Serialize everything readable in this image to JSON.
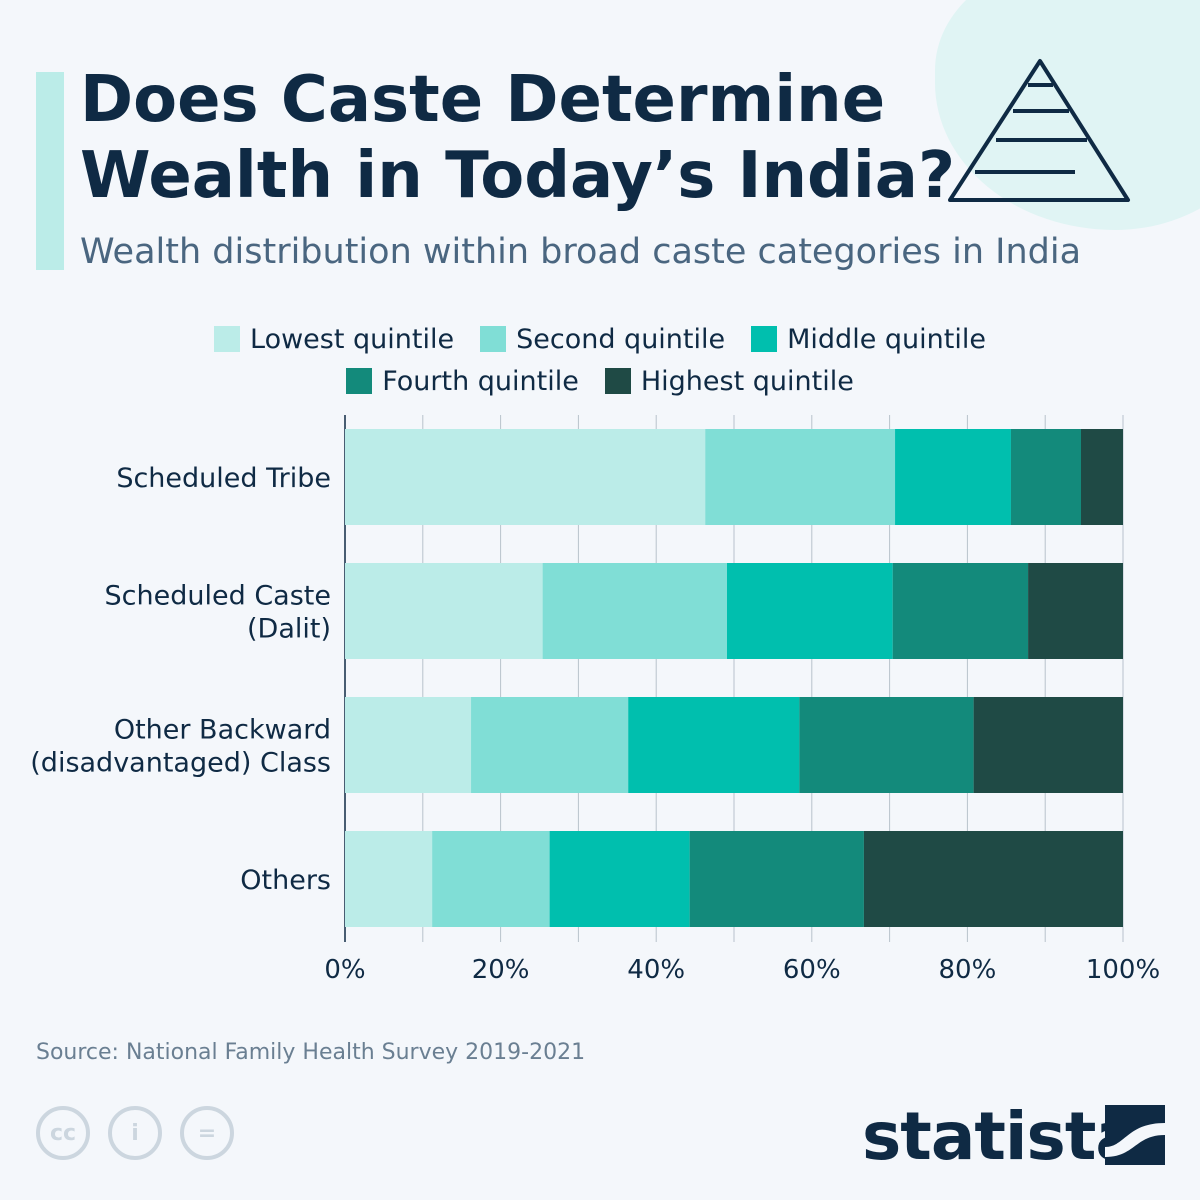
{
  "title_line1": "Does Caste Determine",
  "title_line2": "Wealth in Today’s India?",
  "subtitle": "Wealth distribution within broad caste categories in India",
  "source": "Source: National Family Health Survey 2019-2021",
  "brand": "statista",
  "icons": [
    "pyramid-icon",
    "cc-icon",
    "by-icon",
    "nd-icon",
    "statista-logo-icon"
  ],
  "chart_data": {
    "type": "bar",
    "orientation": "horizontal",
    "stacked": true,
    "categories": [
      "Scheduled Tribe",
      "Scheduled Caste (Dalit)",
      "Other Backward (disadvantaged) Class",
      "Others"
    ],
    "category_lines": [
      [
        "Scheduled Tribe"
      ],
      [
        "Scheduled Caste",
        "(Dalit)"
      ],
      [
        "Other Backward",
        "(disadvantaged) Class"
      ],
      [
        "Others"
      ]
    ],
    "series": [
      {
        "name": "Lowest quintile",
        "color": "#bbece8",
        "values": [
          46.3,
          25.4,
          16.2,
          11.2
        ]
      },
      {
        "name": "Second quintile",
        "color": "#80ded6",
        "values": [
          24.4,
          23.7,
          20.2,
          15.1
        ]
      },
      {
        "name": "Middle quintile",
        "color": "#00bfae",
        "values": [
          14.9,
          21.3,
          22.0,
          18.0
        ]
      },
      {
        "name": "Fourth quintile",
        "color": "#138a7b",
        "values": [
          9.0,
          17.4,
          22.4,
          22.4
        ]
      },
      {
        "name": "Highest quintile",
        "color": "#1f4a45",
        "values": [
          5.4,
          12.2,
          19.2,
          33.3
        ]
      }
    ],
    "xlim": [
      0,
      100
    ],
    "xticks": [
      "0%",
      "20%",
      "40%",
      "60%",
      "80%",
      "100%"
    ],
    "grid": true,
    "legend_position": "top"
  }
}
